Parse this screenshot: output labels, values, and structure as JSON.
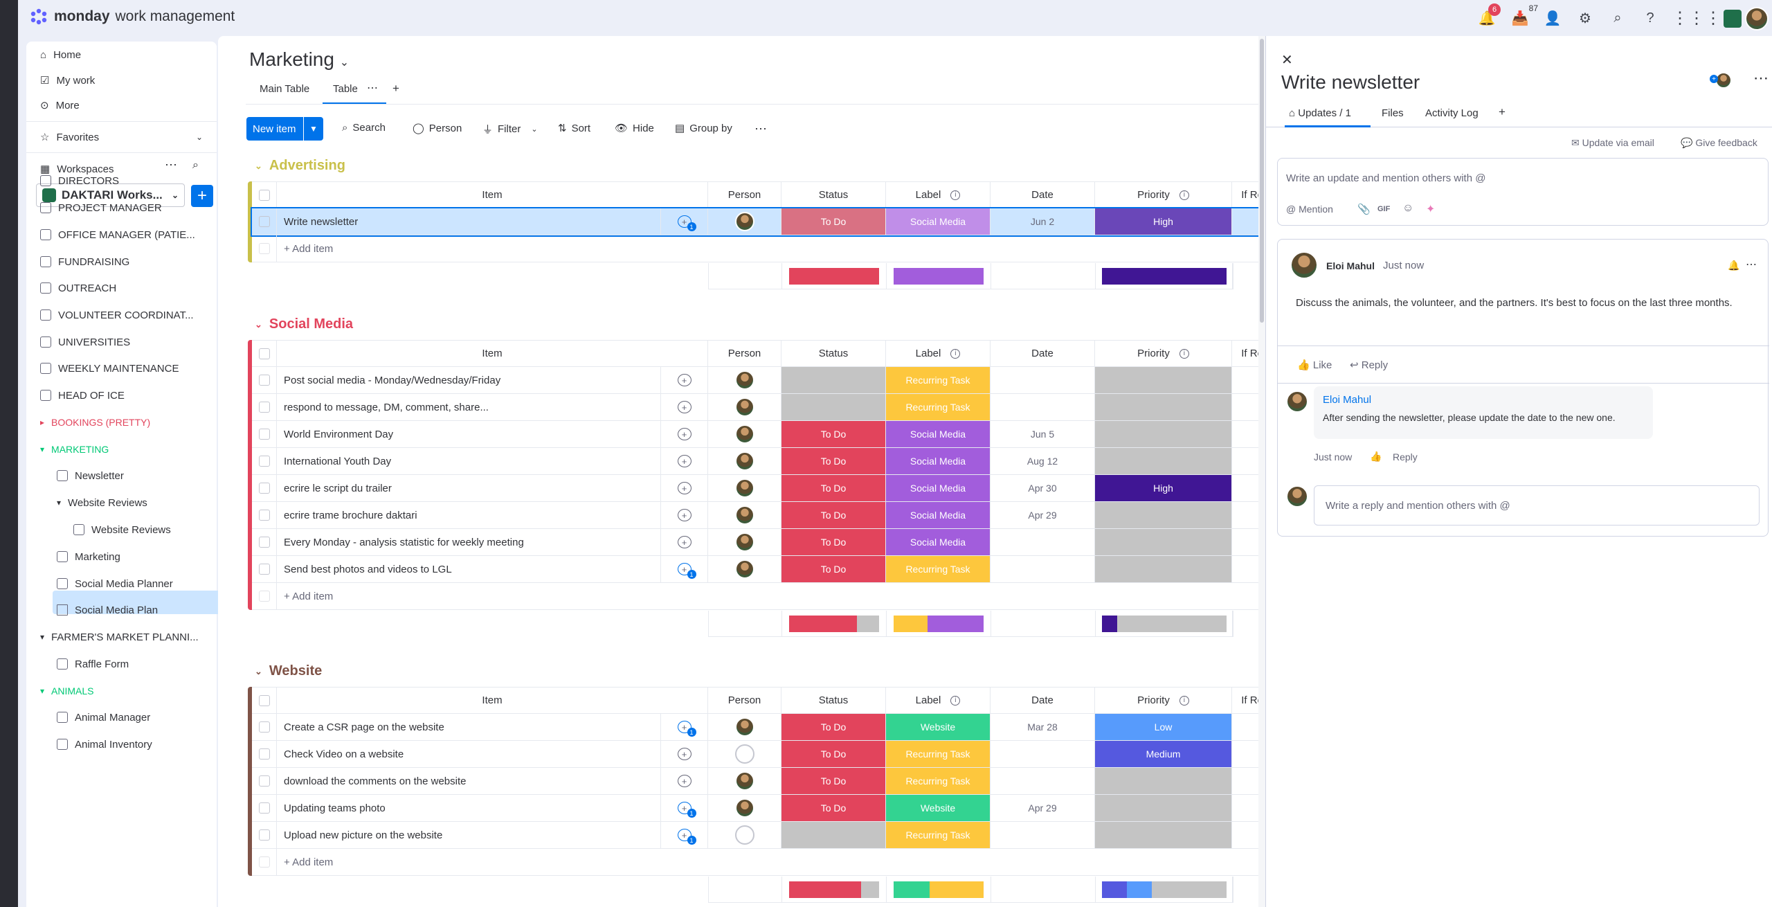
{
  "app": {
    "brand": "monday",
    "brand_sub": "work management"
  },
  "topbar": {
    "notifications_count": "6",
    "inbox_count": "87"
  },
  "sidebar": {
    "nav": [
      "Home",
      "My work",
      "More"
    ],
    "favorites": "Favorites",
    "workspaces": "Workspaces",
    "workspace_name": "DAKTARI Works...",
    "items": [
      {
        "label": "DIRECTORS"
      },
      {
        "label": "PROJECT MANAGER"
      },
      {
        "label": "OFFICE MANAGER (PATIE..."
      },
      {
        "label": "FUNDRAISING"
      },
      {
        "label": "OUTREACH"
      },
      {
        "label": "VOLUNTEER COORDINAT..."
      },
      {
        "label": "UNIVERSITIES"
      },
      {
        "label": "WEEKLY MAINTENANCE"
      },
      {
        "label": "HEAD OF ICE"
      },
      {
        "label": "BOOKINGS (PRETTY)"
      },
      {
        "label": "MARKETING"
      },
      {
        "label": "Newsletter"
      },
      {
        "label": "Website Reviews"
      },
      {
        "label": "Website Reviews"
      },
      {
        "label": "Marketing"
      },
      {
        "label": "Social Media Planner"
      },
      {
        "label": "Social Media Plan"
      },
      {
        "label": "FARMER'S MARKET PLANNI..."
      },
      {
        "label": "Raffle Form"
      },
      {
        "label": "ANIMALS"
      },
      {
        "label": "Animal Manager"
      },
      {
        "label": "Animal Inventory"
      }
    ]
  },
  "board": {
    "title": "Marketing",
    "tabs": [
      "Main Table",
      "Table"
    ],
    "toolbar": {
      "new_item": "New item",
      "search": "Search",
      "person": "Person",
      "filter": "Filter",
      "sort": "Sort",
      "hide": "Hide",
      "group_by": "Group by"
    },
    "columns": {
      "item": "Item",
      "person": "Person",
      "status": "Status",
      "label": "Label",
      "date": "Date",
      "priority": "Priority",
      "if_recurring": "If Recu"
    },
    "add_item": "+ Add item",
    "colors": {
      "todo": "#e2445c",
      "todo_selected": "#d97183",
      "social": "#a25ddc",
      "social_selected": "#c08ee8",
      "recurring": "#fdc73d",
      "website": "#33d391",
      "high": "#401694",
      "high_selected": "#6a47b8",
      "low": "#579bfc",
      "medium": "#5559df",
      "empty": "#c4c4c4"
    },
    "groups": [
      {
        "name": "Advertising",
        "color": "#c9c04a",
        "rows": [
          {
            "item": "Write newsletter",
            "updates": "1",
            "person": "avatar",
            "status": "To Do",
            "label": "Social Media",
            "date": "Jun 2",
            "priority": "High",
            "selected": true
          }
        ],
        "summary": {
          "status": [
            {
              "c": "#e2445c",
              "f": 1
            }
          ],
          "label": [
            {
              "c": "#a25ddc",
              "f": 1
            }
          ],
          "priority": [
            {
              "c": "#401694",
              "f": 1
            }
          ]
        }
      },
      {
        "name": "Social Media",
        "color": "#e2445c",
        "rows": [
          {
            "item": "Post social media - Monday/Wednesday/Friday",
            "updates": "",
            "person": "avatar",
            "status": "",
            "label": "Recurring Task",
            "date": "",
            "priority": ""
          },
          {
            "item": "respond to message, DM, comment, share...",
            "updates": "",
            "person": "avatar",
            "status": "",
            "label": "Recurring Task",
            "date": "",
            "priority": ""
          },
          {
            "item": "World Environment Day",
            "updates": "",
            "person": "avatar",
            "status": "To Do",
            "label": "Social Media",
            "date": "Jun 5",
            "priority": ""
          },
          {
            "item": "International Youth Day",
            "updates": "",
            "person": "avatar",
            "status": "To Do",
            "label": "Social Media",
            "date": "Aug 12",
            "priority": ""
          },
          {
            "item": "ecrire le script du trailer",
            "updates": "",
            "person": "avatar",
            "status": "To Do",
            "label": "Social Media",
            "date": "Apr 30",
            "priority": "High"
          },
          {
            "item": "ecrire trame brochure daktari",
            "updates": "",
            "person": "avatar",
            "status": "To Do",
            "label": "Social Media",
            "date": "Apr 29",
            "priority": ""
          },
          {
            "item": "Every Monday - analysis statistic for weekly meeting",
            "updates": "",
            "person": "avatar",
            "status": "To Do",
            "label": "Social Media",
            "date": "",
            "priority": ""
          },
          {
            "item": "Send best photos and videos to LGL",
            "updates": "1",
            "person": "avatar",
            "status": "To Do",
            "label": "Recurring Task",
            "date": "",
            "priority": ""
          }
        ],
        "summary": {
          "status": [
            {
              "c": "#e2445c",
              "f": 0.75
            },
            {
              "c": "#c4c4c4",
              "f": 0.25
            }
          ],
          "label": [
            {
              "c": "#fdc73d",
              "f": 0.375
            },
            {
              "c": "#a25ddc",
              "f": 0.625
            }
          ],
          "priority": [
            {
              "c": "#401694",
              "f": 0.125
            },
            {
              "c": "#c4c4c4",
              "f": 0.875
            }
          ]
        }
      },
      {
        "name": "Website",
        "color": "#7f5347",
        "rows": [
          {
            "item": "Create a CSR page on the website",
            "updates": "1",
            "person": "avatar",
            "status": "To Do",
            "label": "Website",
            "date": "Mar 28",
            "priority": "Low"
          },
          {
            "item": "Check Video on a website",
            "updates": "",
            "person": "empty",
            "status": "To Do",
            "label": "Recurring Task",
            "date": "",
            "priority": "Medium"
          },
          {
            "item": "download the comments on the website",
            "updates": "",
            "person": "avatar",
            "status": "To Do",
            "label": "Recurring Task",
            "date": "",
            "priority": ""
          },
          {
            "item": "Updating teams photo",
            "updates": "1",
            "person": "avatar",
            "status": "To Do",
            "label": "Website",
            "date": "Apr 29",
            "priority": ""
          },
          {
            "item": "Upload new picture on the website",
            "updates": "1",
            "person": "empty",
            "status": "",
            "label": "Recurring Task",
            "date": "",
            "priority": ""
          }
        ],
        "summary": {
          "status": [
            {
              "c": "#e2445c",
              "f": 0.8
            },
            {
              "c": "#c4c4c4",
              "f": 0.2
            }
          ],
          "label": [
            {
              "c": "#33d391",
              "f": 0.4
            },
            {
              "c": "#fdc73d",
              "f": 0.6
            }
          ],
          "priority": [
            {
              "c": "#5559df",
              "f": 0.2
            },
            {
              "c": "#579bfc",
              "f": 0.2
            },
            {
              "c": "#c4c4c4",
              "f": 0.6
            }
          ]
        }
      }
    ]
  },
  "panel": {
    "title": "Write newsletter",
    "tabs": [
      "Updates / 1",
      "Files",
      "Activity Log"
    ],
    "update_via_email": "Update via email",
    "give_feedback": "Give feedback",
    "editor_placeholder": "Write an update and mention others with @",
    "mention": "Mention",
    "gif": "GIF",
    "post": {
      "author": "Eloi Mahul",
      "time": "Just now",
      "body": "Discuss the animals, the volunteer, and the partners. It's best to focus on the last three months.",
      "like": "Like",
      "reply": "Reply"
    },
    "reply": {
      "author": "Eloi Mahul",
      "body": "After sending the newsletter, please update the date to the new one.",
      "time": "Just now",
      "reply": "Reply"
    },
    "reply_placeholder": "Write a reply and mention others with @"
  }
}
